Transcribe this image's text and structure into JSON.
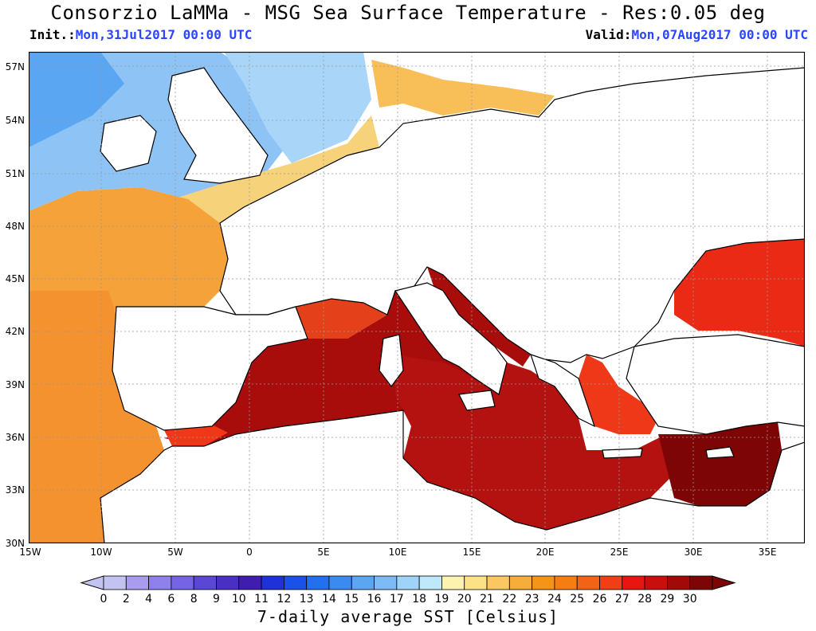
{
  "title": "Consorzio LaMMa -  MSG Sea Surface Temperature - Res:0.05 deg",
  "init": {
    "label": "Init.:",
    "value": "Mon,31Jul2017 00:00 UTC"
  },
  "valid": {
    "label": "Valid:",
    "value": "Mon,07Aug2017 00:00 UTC"
  },
  "map": {
    "lat_labels": [
      "57N",
      "54N",
      "51N",
      "48N",
      "45N",
      "42N",
      "39N",
      "36N",
      "33N",
      "30N"
    ],
    "lon_labels": [
      "15W",
      "10W",
      "5W",
      "0",
      "5E",
      "10E",
      "15E",
      "20E",
      "25E",
      "30E",
      "35E"
    ]
  },
  "colorbar": {
    "ticks": [
      "0",
      "2",
      "4",
      "6",
      "8",
      "9",
      "10",
      "11",
      "12",
      "13",
      "14",
      "15",
      "16",
      "17",
      "18",
      "19",
      "20",
      "21",
      "22",
      "23",
      "24",
      "25",
      "26",
      "27",
      "28",
      "29",
      "30"
    ],
    "colors": [
      "#c3c3f2",
      "#a99bf0",
      "#8f81ea",
      "#7565e4",
      "#5b47d6",
      "#4a2fc4",
      "#3e1db0",
      "#1e32d8",
      "#1a52e8",
      "#2270ec",
      "#3b8af0",
      "#5aa6f3",
      "#7dbbf6",
      "#9fd3f8",
      "#bfe9fb",
      "#fdf3b0",
      "#fce287",
      "#fac760",
      "#f7ad3a",
      "#f59419",
      "#f67d14",
      "#f26415",
      "#ef3f16",
      "#e71611",
      "#c70f0d",
      "#a20a09",
      "#7e0505"
    ],
    "title": "7-daily average SST [Celsius]"
  },
  "colors": {
    "land": "#ffffff",
    "atlantic_north": "#8ec3f5",
    "channel": "#f6d37a",
    "biscay": "#f5a23a",
    "iberian_atlantic": "#f3922e",
    "west_med": "#a80d0b",
    "east_med": "#b41210",
    "levantine": "#7e0505",
    "aegean": "#ee3818",
    "black_sea": "#ea2a14",
    "baltic": "#f8be58",
    "label_blue": "#2a46ff"
  }
}
